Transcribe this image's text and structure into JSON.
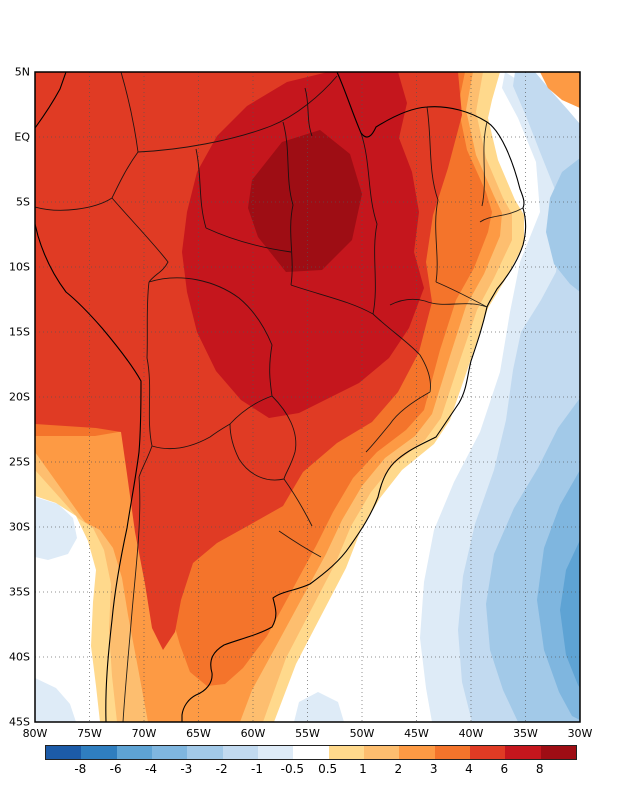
{
  "figure": {
    "kind": "filled-contour anomaly map of South America"
  },
  "map": {
    "lat_ticks": [
      "5N",
      "EQ",
      "5S",
      "10S",
      "15S",
      "20S",
      "25S",
      "30S",
      "35S",
      "40S",
      "45S"
    ],
    "lon_ticks": [
      "80W",
      "75W",
      "70W",
      "65W",
      "60W",
      "55W",
      "50W",
      "45W",
      "40W",
      "35W",
      "30W"
    ]
  },
  "colorbar": {
    "labels": [
      "-8",
      "-6",
      "-4",
      "-3",
      "-2",
      "-1",
      "-0.5",
      "0.5",
      "1",
      "2",
      "3",
      "4",
      "6",
      "8"
    ],
    "colors": [
      "#1C5BA8",
      "#2F7EBF",
      "#5EA3D4",
      "#7FB6DF",
      "#A2C9E8",
      "#C2DAF0",
      "#DEEBF7",
      "#FFFFFF",
      "#FFD98C",
      "#FDBE6F",
      "#FD9A44",
      "#F4742B",
      "#E03B24",
      "#C5161D",
      "#9E0D14"
    ]
  },
  "chart_data": {
    "type": "heatmap",
    "title": "",
    "x_ticks": [
      "80W",
      "75W",
      "70W",
      "65W",
      "60W",
      "55W",
      "50W",
      "45W",
      "40W",
      "35W",
      "30W"
    ],
    "y_ticks": [
      "5N",
      "EQ",
      "5S",
      "10S",
      "15S",
      "20S",
      "25S",
      "30S",
      "35S",
      "40S",
      "45S"
    ],
    "colorbar_levels": [
      -8,
      -6,
      -4,
      -3,
      -2,
      -1,
      -0.5,
      0.5,
      1,
      2,
      3,
      4,
      6,
      8
    ],
    "colorbar_colors": [
      "#1C5BA8",
      "#2F7EBF",
      "#5EA3D4",
      "#7FB6DF",
      "#A2C9E8",
      "#C2DAF0",
      "#DEEBF7",
      "#FFFFFF",
      "#FFD98C",
      "#FDBE6F",
      "#FD9A44",
      "#F4742B",
      "#E03B24",
      "#C5161D",
      "#9E0D14"
    ],
    "description": "Strong positive anomaly (dark red, >6) centered over the central and northern Amazon basin; warm anomalies (0.5 to 6) over nearly the entire continent extending south along the Andes; negative anomalies (-0.5 to -4, blues) over the adjacent South Atlantic ocean southeast and east of Brazil, with small negative patches off the Pacific coast near 30S and in the southwest corner."
  }
}
